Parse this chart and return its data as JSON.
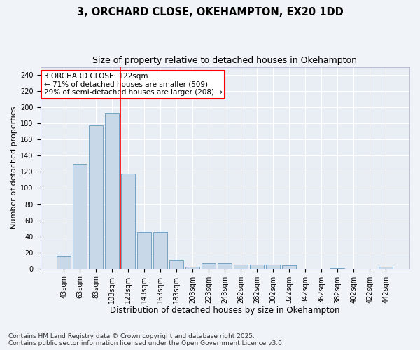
{
  "title1": "3, ORCHARD CLOSE, OKEHAMPTON, EX20 1DD",
  "title2": "Size of property relative to detached houses in Okehampton",
  "xlabel": "Distribution of detached houses by size in Okehampton",
  "ylabel": "Number of detached properties",
  "categories": [
    "43sqm",
    "63sqm",
    "83sqm",
    "103sqm",
    "123sqm",
    "143sqm",
    "163sqm",
    "183sqm",
    "203sqm",
    "223sqm",
    "243sqm",
    "262sqm",
    "282sqm",
    "302sqm",
    "322sqm",
    "342sqm",
    "362sqm",
    "382sqm",
    "402sqm",
    "422sqm",
    "442sqm"
  ],
  "values": [
    15,
    130,
    178,
    192,
    118,
    45,
    45,
    10,
    2,
    7,
    7,
    5,
    5,
    5,
    4,
    0,
    0,
    1,
    0,
    0,
    2
  ],
  "bar_color": "#c8d8e8",
  "bar_edge_color": "#6699bb",
  "red_line_index": 4,
  "annotation_text": "3 ORCHARD CLOSE: 122sqm\n← 71% of detached houses are smaller (509)\n29% of semi-detached houses are larger (208) →",
  "annotation_box_color": "white",
  "annotation_box_edge": "red",
  "ylim": [
    0,
    250
  ],
  "yticks": [
    0,
    20,
    40,
    60,
    80,
    100,
    120,
    140,
    160,
    180,
    200,
    220,
    240
  ],
  "plot_bg_color": "#e8eef4",
  "outer_bg_color": "#f0f4f8",
  "grid_color": "#ffffff",
  "footer": "Contains HM Land Registry data © Crown copyright and database right 2025.\nContains public sector information licensed under the Open Government Licence v3.0.",
  "title1_fontsize": 10.5,
  "title2_fontsize": 9,
  "xlabel_fontsize": 8.5,
  "ylabel_fontsize": 8,
  "tick_fontsize": 7,
  "annotation_fontsize": 7.5,
  "footer_fontsize": 6.5
}
